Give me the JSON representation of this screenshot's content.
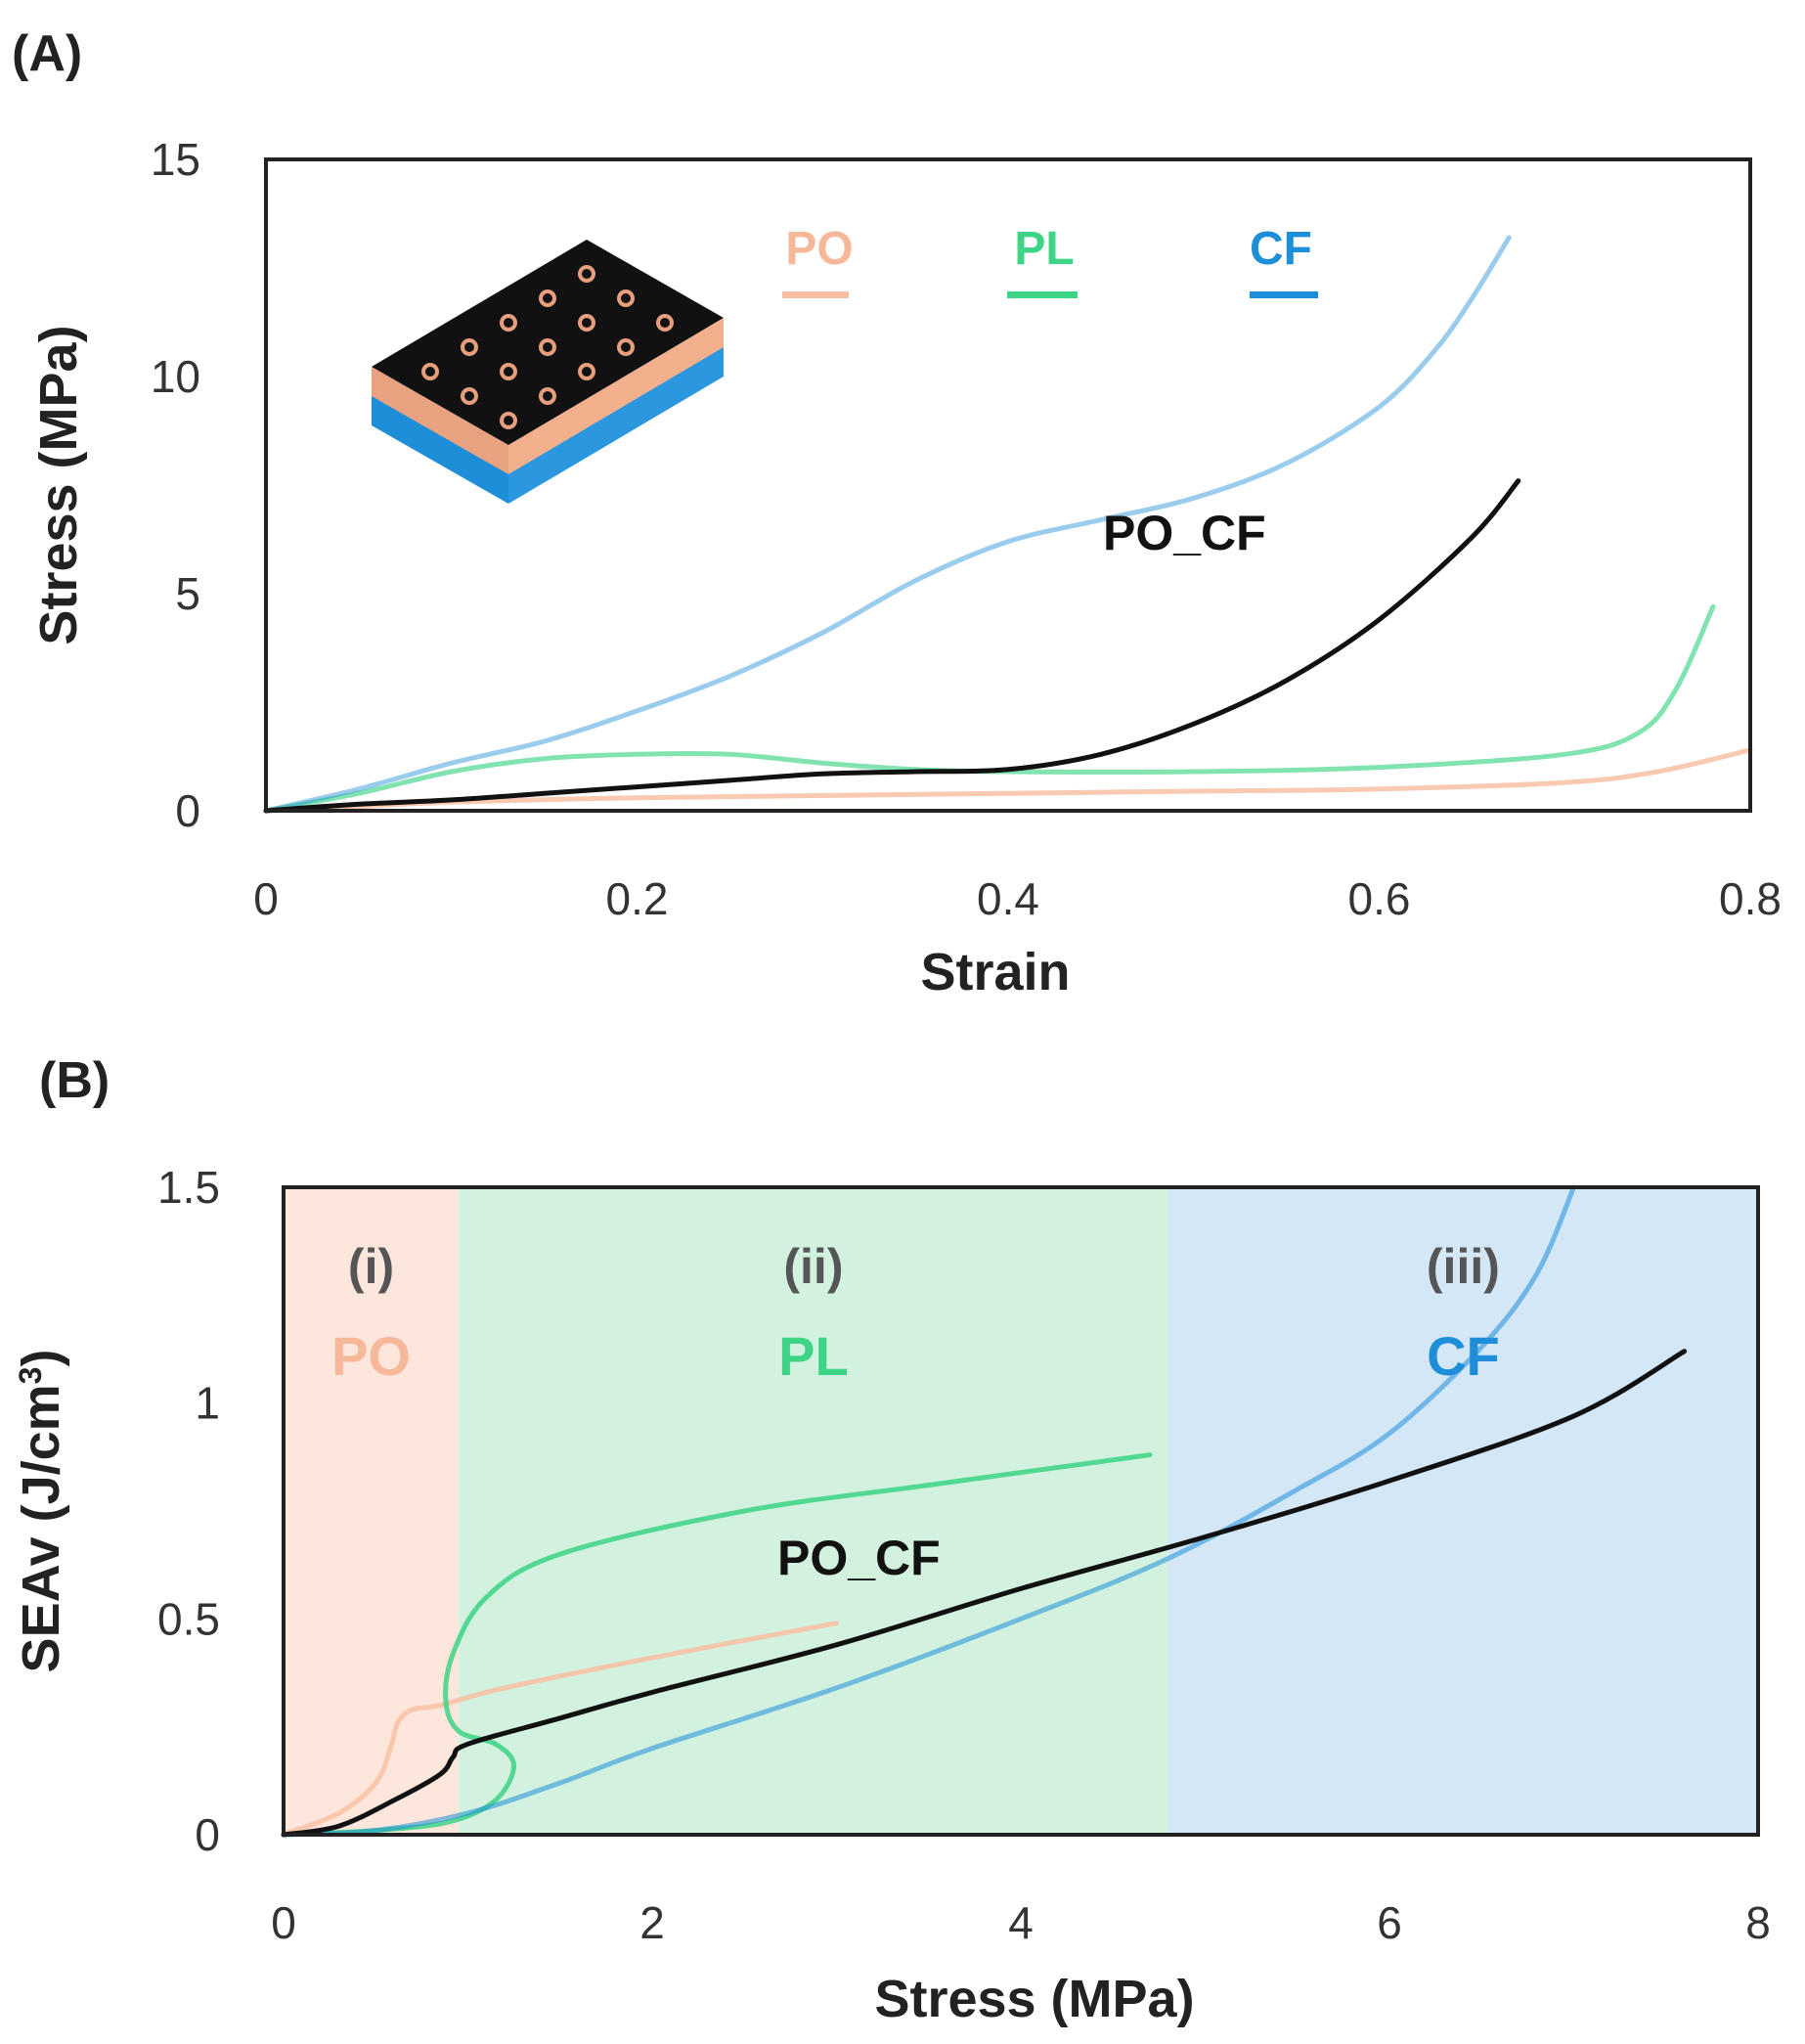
{
  "figure": {
    "colors": {
      "PO": "#F9BFA3",
      "PL": "#3DD486",
      "CF": "#1E8ED8",
      "PO_CF": "#111111",
      "region_PO": "#FDE6DC",
      "region_PL": "#D2F2DF",
      "region_CF": "#D4E7F6"
    },
    "inset_icon": "honeycomb-lattice-block-icon"
  },
  "chart_data": [
    {
      "panel": "(A)",
      "type": "line",
      "xlabel": "Strain",
      "ylabel": "Stress (MPa)",
      "xlim": [
        0,
        0.8
      ],
      "ylim": [
        0,
        15
      ],
      "xticks": [
        "0",
        "0.2",
        "0.4",
        "0.6",
        "0.8"
      ],
      "yticks": [
        "0",
        "5",
        "10",
        "15"
      ],
      "legend": [
        {
          "label": "PO",
          "series": "PO"
        },
        {
          "label": "PL",
          "series": "PL"
        },
        {
          "label": "CF",
          "series": "CF"
        }
      ],
      "annotations": [
        {
          "text": "PO_CF",
          "x": 0.5,
          "y": 6.4
        }
      ],
      "series": [
        {
          "name": "PO",
          "x": [
            0,
            0.05,
            0.1,
            0.2,
            0.3,
            0.4,
            0.5,
            0.6,
            0.7,
            0.75,
            0.8
          ],
          "y": [
            0,
            0.1,
            0.2,
            0.3,
            0.35,
            0.4,
            0.45,
            0.5,
            0.65,
            0.9,
            1.4
          ]
        },
        {
          "name": "PL",
          "x": [
            0,
            0.05,
            0.1,
            0.15,
            0.2,
            0.25,
            0.3,
            0.35,
            0.4,
            0.5,
            0.6,
            0.7,
            0.74,
            0.76,
            0.78
          ],
          "y": [
            0,
            0.4,
            0.9,
            1.2,
            1.3,
            1.3,
            1.1,
            0.95,
            0.9,
            0.9,
            1.0,
            1.3,
            1.8,
            2.8,
            4.7
          ]
        },
        {
          "name": "CF",
          "x": [
            0,
            0.05,
            0.1,
            0.15,
            0.2,
            0.25,
            0.3,
            0.35,
            0.4,
            0.45,
            0.5,
            0.55,
            0.6,
            0.63,
            0.65,
            0.67
          ],
          "y": [
            0,
            0.5,
            1.1,
            1.6,
            2.3,
            3.1,
            4.1,
            5.3,
            6.2,
            6.7,
            7.2,
            8.0,
            9.3,
            10.6,
            11.8,
            13.2
          ]
        },
        {
          "name": "PO_CF",
          "x": [
            0,
            0.05,
            0.1,
            0.15,
            0.2,
            0.25,
            0.3,
            0.35,
            0.4,
            0.45,
            0.5,
            0.55,
            0.6,
            0.65,
            0.675
          ],
          "y": [
            0,
            0.15,
            0.25,
            0.4,
            0.55,
            0.7,
            0.85,
            0.9,
            0.95,
            1.3,
            2.0,
            3.0,
            4.4,
            6.3,
            7.6
          ]
        }
      ]
    },
    {
      "panel": "(B)",
      "type": "line",
      "xlabel": "Stress (MPa)",
      "ylabel": "SEAv (J/cm",
      "ylabel_sup": "3",
      "ylabel_end": ")",
      "xlim": [
        0,
        8
      ],
      "ylim": [
        0,
        1.5
      ],
      "xticks": [
        "0",
        "2",
        "4",
        "6",
        "8"
      ],
      "yticks": [
        "0",
        "0.5",
        "1",
        "1.5"
      ],
      "regions": [
        {
          "id": "PO",
          "num": "(i)",
          "name": "PO",
          "from": 0,
          "to": 0.95
        },
        {
          "id": "PL",
          "num": "(ii)",
          "name": "PL",
          "from": 0.95,
          "to": 4.8
        },
        {
          "id": "CF",
          "num": "(iii)",
          "name": "CF",
          "from": 4.8,
          "to": 8
        }
      ],
      "annotations": [
        {
          "text": "PO_CF",
          "x": 3.2,
          "y": 0.61
        }
      ],
      "series": [
        {
          "name": "PO",
          "x": [
            0,
            0.3,
            0.5,
            0.58,
            0.62,
            0.7,
            0.85,
            1.2,
            2.0,
            3.0
          ],
          "y": [
            0,
            0.05,
            0.12,
            0.2,
            0.26,
            0.29,
            0.3,
            0.34,
            0.41,
            0.49
          ]
        },
        {
          "name": "PL",
          "x": [
            0,
            0.5,
            0.9,
            1.15,
            1.25,
            1.15,
            0.95,
            0.88,
            0.92,
            1.1,
            1.5,
            2.5,
            3.5,
            4.7
          ],
          "y": [
            0,
            0.01,
            0.03,
            0.08,
            0.16,
            0.21,
            0.24,
            0.31,
            0.42,
            0.55,
            0.65,
            0.75,
            0.81,
            0.88
          ]
        },
        {
          "name": "CF",
          "x": [
            0,
            0.5,
            1.0,
            1.5,
            2.0,
            3.0,
            4.0,
            4.8,
            5.5,
            6.0,
            6.5,
            6.8,
            7.0
          ],
          "y": [
            0,
            0.01,
            0.05,
            0.12,
            0.2,
            0.34,
            0.5,
            0.64,
            0.8,
            0.93,
            1.13,
            1.3,
            1.5
          ]
        },
        {
          "name": "PO_CF",
          "x": [
            0,
            0.3,
            0.6,
            0.85,
            0.92,
            1.0,
            1.5,
            2.0,
            3.0,
            4.0,
            5.0,
            6.0,
            7.0,
            7.6
          ],
          "y": [
            0,
            0.02,
            0.08,
            0.14,
            0.18,
            0.21,
            0.27,
            0.33,
            0.44,
            0.57,
            0.69,
            0.82,
            0.97,
            1.12
          ]
        }
      ]
    }
  ]
}
